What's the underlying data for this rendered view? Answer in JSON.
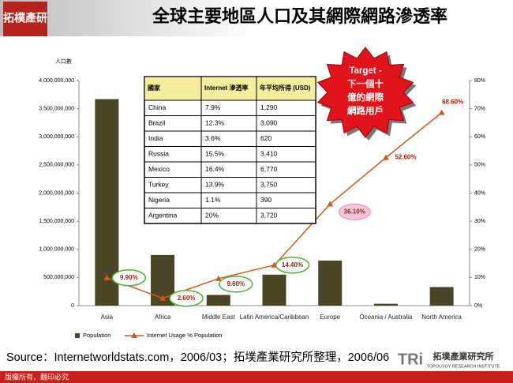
{
  "header": {
    "title": "全球主要地區人口及其網際網路滲透率",
    "logo": "拓樸產研"
  },
  "chart_data": {
    "type": "combo",
    "y_label": "人口數",
    "categories": [
      "Asia",
      "Africa",
      "Middle East",
      "Latin America/Caribbean",
      "Europe",
      "Oceania / Australia",
      "North America"
    ],
    "series": [
      {
        "name": "Population",
        "type": "bar",
        "color": "#4b4526",
        "values": [
          3670000000,
          900000000,
          190000000,
          550000000,
          800000000,
          33000000,
          330000000
        ]
      },
      {
        "name": "Internet Usage % Population",
        "type": "line",
        "axis": "y2",
        "color": "#d4581c",
        "values": [
          9.9,
          2.6,
          9.6,
          14.4,
          36.1,
          52.6,
          68.6
        ],
        "value_labels": [
          "9.90%",
          "2.60%",
          "9.60%",
          "14.40%",
          "36.10%",
          "52.60%",
          "68.60%"
        ]
      }
    ],
    "ylim": [
      0,
      4000000000
    ],
    "yticks": [
      0,
      {
        "value": 500000000,
        "label": "500,000,000"
      },
      {
        "value": 1000000000,
        "label": "1,000,000,000"
      },
      {
        "value": 1500000000,
        "label": "1,500,000,000"
      },
      {
        "value": 2000000000,
        "label": "2,000,000,000"
      },
      {
        "value": 2500000000,
        "label": "2,500,000,000"
      },
      {
        "value": 3000000000,
        "label": "3,000,000,000"
      },
      {
        "value": 3500000000,
        "label": "3,500,000,000"
      },
      {
        "value": 4000000000,
        "label": "4,000,000,000"
      }
    ],
    "y2lim": [
      0,
      80
    ],
    "y2ticks": [
      {
        "value": 0,
        "label": "0%"
      },
      {
        "value": 10,
        "label": "10%"
      },
      {
        "value": 20,
        "label": "20%"
      },
      {
        "value": 30,
        "label": "30%"
      },
      {
        "value": 40,
        "label": "40%"
      },
      {
        "value": 50,
        "label": "50%"
      },
      {
        "value": 60,
        "label": "60%"
      },
      {
        "value": 70,
        "label": "70%"
      },
      {
        "value": 80,
        "label": "80%"
      }
    ],
    "legend": "bottom"
  },
  "table": {
    "header": [
      "國家",
      "Internet 滲透率",
      "年平均所得 (USD)"
    ],
    "rows": [
      [
        "China",
        "7.9%",
        "1,290"
      ],
      [
        "Brazil",
        "12.3%",
        "3,090"
      ],
      [
        "India",
        "3.6%",
        "620"
      ],
      [
        "Russia",
        "15.5%",
        "3,410"
      ],
      [
        "Mexico",
        "16.4%",
        "6,770"
      ],
      [
        "Turkey",
        "13.9%",
        "3,750"
      ],
      [
        "Nigeria",
        "1.1%",
        "390"
      ],
      [
        "Argentina",
        "20%",
        "3,720"
      ]
    ]
  },
  "callout": [
    "Target -",
    "下一個十",
    "億的網際",
    "網路用戶"
  ],
  "source": "Source：Internetworldstats.com，2006/03；拓墣產業研究所整理，2006/06",
  "footer": {
    "copyright": "版權所有，翻印必究",
    "brand": "TRi",
    "brand_name": "拓墣產業研究所",
    "brand_en": "TOPOLOGY RESEARCH INSTITUTE"
  }
}
